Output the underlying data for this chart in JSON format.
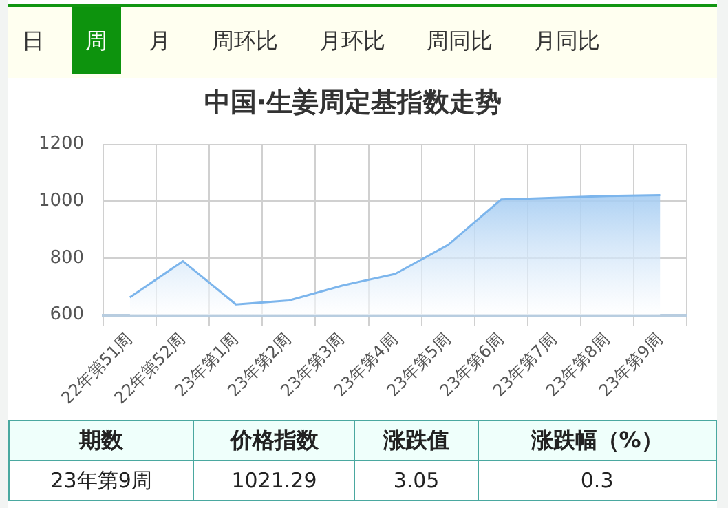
{
  "chart_data": [
    {
      "type": "other",
      "annotations": [
        "日",
        "周",
        "月",
        "周环比",
        "月环比",
        "周同比",
        "月同比"
      ]
    },
    {
      "type": "area",
      "title": "中国·生姜周定基指数走势",
      "categories": [
        "22年第51周",
        "22年第52周",
        "23年第1周",
        "23年第2周",
        "23年第3周",
        "23年第4周",
        "23年第5周",
        "23年第6周",
        "23年第7周",
        "23年第8周",
        "23年第9周"
      ],
      "series": [
        {
          "color": "#7cb5ec",
          "values": [
            662,
            789,
            637,
            651,
            703,
            744,
            846,
            1006,
            1012,
            1018,
            1021.29
          ]
        }
      ],
      "ylim": [
        600,
        1200
      ],
      "yticks": [
        600,
        800,
        1000,
        1200
      ],
      "grid": true,
      "marker": "none"
    },
    {
      "type": "other",
      "annotations": [
        "期数",
        "价格指数",
        "涨跌值",
        "涨跌幅（%）",
        "23年第9周",
        "1021.29",
        "3.05",
        "0.3"
      ]
    }
  ]
}
